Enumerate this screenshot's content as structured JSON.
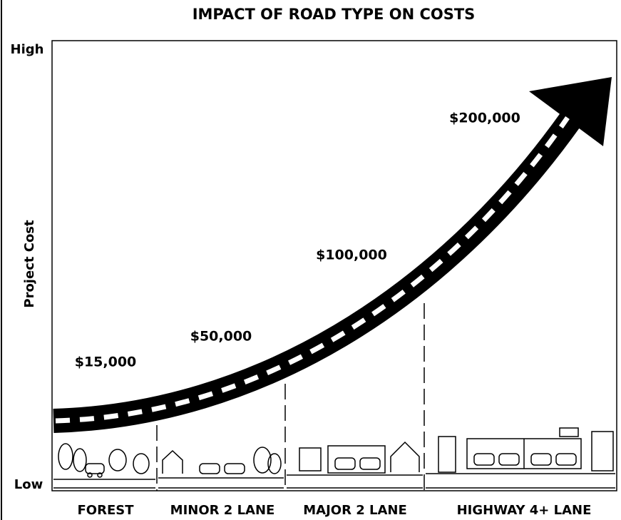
{
  "title": "IMPACT OF ROAD TYPE ON COSTS",
  "y_axis": {
    "label": "Project Cost",
    "high": "High",
    "low": "Low"
  },
  "categories": [
    {
      "name": "FOREST",
      "cost": "$15,000"
    },
    {
      "name": "MINOR 2 LANE",
      "cost": "$50,000"
    },
    {
      "name": "MAJOR 2 LANE",
      "cost": "$100,000"
    },
    {
      "name": "HIGHWAY 4+ LANE",
      "cost": "$200,000"
    }
  ]
}
